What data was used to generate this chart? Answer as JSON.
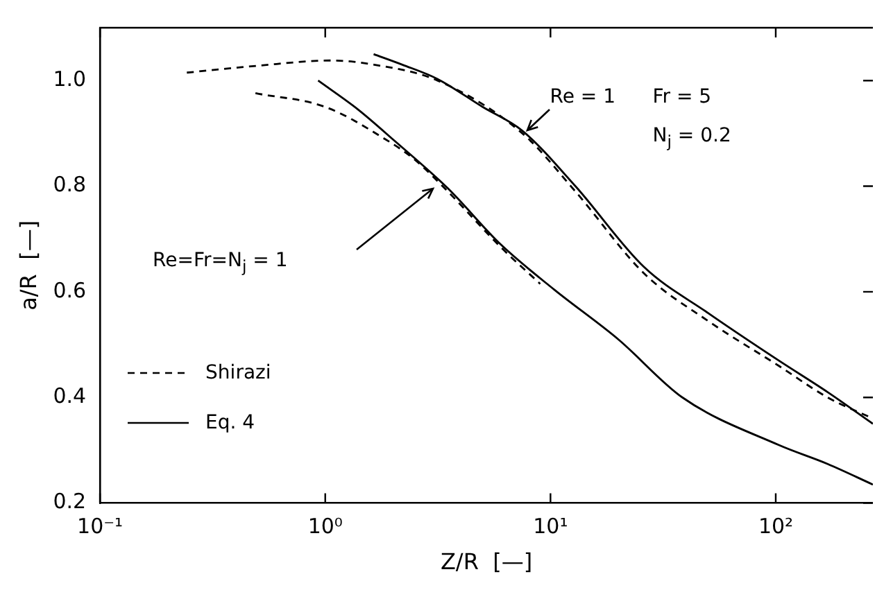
{
  "chart_data": {
    "type": "line",
    "xlabel": "Z/R  [—]",
    "ylabel": "a/R  [—]",
    "log": "x",
    "xlim": [
      0.1,
      270
    ],
    "ylim": [
      0.2,
      1.1
    ],
    "xticks": [
      {
        "value": 0.1,
        "label": "10⁻¹"
      },
      {
        "value": 1,
        "label": "10⁰"
      },
      {
        "value": 10,
        "label": "10¹"
      },
      {
        "value": 100,
        "label": "10²"
      }
    ],
    "yticks": [
      {
        "value": 0.2,
        "label": "0.2"
      },
      {
        "value": 0.4,
        "label": "0.4"
      },
      {
        "value": 0.6,
        "label": "0.6"
      },
      {
        "value": 0.8,
        "label": "0.8"
      },
      {
        "value": 1,
        "label": "1.0"
      }
    ],
    "grid": false,
    "legend": "bottom left",
    "marker": "none",
    "annotations": [
      {
        "text": "Re = 1",
        "x": 7.7,
        "y": 0.9
      },
      "Fr = 5",
      "N$_{j}$ = 0.2",
      "Re=Fr=N$_{j}$ = 1"
    ],
    "series": [
      {
        "name": "Shirazi",
        "color": "#000000",
        "line_style": "dashed",
        "x": [
          0.243,
          0.5,
          1.06,
          1.65,
          3.15,
          7.5,
          12.9,
          26,
          50,
          103,
          170,
          270
        ],
        "values": [
          1.015,
          1.028,
          1.038,
          1.03,
          1.0,
          0.9,
          0.79,
          0.635,
          0.545,
          0.46,
          0.4,
          0.36
        ]
      },
      {
        "name": "Eq. 4",
        "color": "#000000",
        "line_style": "solid",
        "x": [
          1.64,
          2.2,
          3.15,
          5,
          7.5,
          12.9,
          26,
          50,
          103,
          170,
          270
        ],
        "values": [
          1.05,
          1.03,
          1.003,
          0.95,
          0.905,
          0.8,
          0.647,
          0.56,
          0.47,
          0.41,
          0.35
        ]
      },
      {
        "color": "#000000",
        "line_style": "dashed",
        "x": [
          0.49,
          1,
          1.83,
          2.5,
          3.5,
          6,
          9
        ],
        "values": [
          0.976,
          0.95,
          0.89,
          0.85,
          0.79,
          0.685,
          0.615
        ]
      },
      {
        "color": "#000000",
        "line_style": "solid",
        "x": [
          0.93,
          1.4,
          2.03,
          3.5,
          6,
          10.4,
          20,
          38.5,
          103,
          170,
          270
        ],
        "values": [
          1.0,
          0.945,
          0.886,
          0.796,
          0.69,
          0.604,
          0.51,
          0.4,
          0.31,
          0.274,
          0.235
        ]
      }
    ]
  }
}
